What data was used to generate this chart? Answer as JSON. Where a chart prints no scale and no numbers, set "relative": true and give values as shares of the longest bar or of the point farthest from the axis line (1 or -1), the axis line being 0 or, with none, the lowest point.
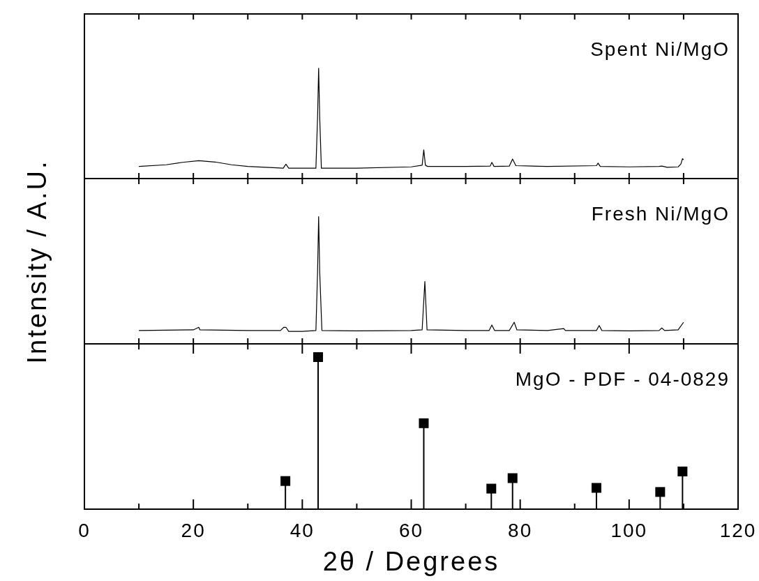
{
  "chart_data": [
    {
      "type": "line",
      "relative": true,
      "xlim": [
        0,
        120
      ],
      "xticks": [
        {
          "value": 0,
          "label": null
        },
        {
          "value": 10,
          "label": null
        },
        {
          "value": 20,
          "label": null
        },
        {
          "value": 30,
          "label": null
        },
        {
          "value": 40,
          "label": null
        },
        {
          "value": 50,
          "label": null
        },
        {
          "value": 60,
          "label": null
        },
        {
          "value": 70,
          "label": null
        },
        {
          "value": 80,
          "label": null
        },
        {
          "value": 90,
          "label": null
        },
        {
          "value": 100,
          "label": null
        },
        {
          "value": 110,
          "label": null
        },
        {
          "value": 120,
          "label": null
        }
      ],
      "tick_labels": false,
      "series": [
        {
          "name": "Spent Ni/MgO",
          "color": "#000000",
          "x": [
            10,
            15,
            18,
            21,
            24,
            27,
            30,
            34,
            36.5,
            37,
            37.5,
            40,
            42.5,
            42.8,
            43,
            43.2,
            43.5,
            50,
            60,
            62,
            62.3,
            62.6,
            63,
            70,
            74.5,
            74.8,
            75.2,
            78,
            78.6,
            79.2,
            85,
            94,
            94.3,
            94.7,
            100,
            105.5,
            106,
            107,
            109,
            109.5,
            109.8,
            110
          ],
          "values": [
            0.11,
            0.125,
            0.147,
            0.162,
            0.15,
            0.125,
            0.11,
            0.1,
            0.094,
            0.13,
            0.094,
            0.094,
            0.094,
            0.55,
            1,
            0.55,
            0.094,
            0.094,
            0.106,
            0.121,
            0.26,
            0.121,
            0.11,
            0.11,
            0.113,
            0.147,
            0.11,
            0.113,
            0.177,
            0.117,
            0.11,
            0.117,
            0.14,
            0.11,
            0.106,
            0.11,
            0.113,
            0.102,
            0.106,
            0.132,
            0.18,
            0.17
          ]
        }
      ]
    },
    {
      "type": "line",
      "relative": true,
      "xlim": [
        0,
        120
      ],
      "xticks": [
        {
          "value": 0,
          "label": null
        },
        {
          "value": 10,
          "label": null
        },
        {
          "value": 20,
          "label": null
        },
        {
          "value": 30,
          "label": null
        },
        {
          "value": 40,
          "label": null
        },
        {
          "value": 50,
          "label": null
        },
        {
          "value": 60,
          "label": null
        },
        {
          "value": 70,
          "label": null
        },
        {
          "value": 80,
          "label": null
        },
        {
          "value": 90,
          "label": null
        },
        {
          "value": 100,
          "label": null
        },
        {
          "value": 110,
          "label": null
        },
        {
          "value": 120,
          "label": null
        }
      ],
      "tick_labels": false,
      "ylabel": "Intensity / A.U.",
      "series": [
        {
          "name": "Fresh Ni/MgO",
          "color": "#000000",
          "x": [
            10,
            20,
            21,
            21.2,
            30,
            36,
            36.6,
            37,
            37.5,
            40,
            42.5,
            42.8,
            43,
            43.2,
            43.6,
            50,
            60,
            62,
            62.5,
            62.9,
            70,
            74.3,
            74.8,
            75.3,
            78,
            78.9,
            79.4,
            85,
            88,
            88.3,
            94,
            94.5,
            95,
            100,
            105.5,
            106,
            106.5,
            109,
            110
          ],
          "values": [
            0.105,
            0.11,
            0.13,
            0.11,
            0.105,
            0.105,
            0.13,
            0.13,
            0.098,
            0.098,
            0.105,
            0.56,
            1,
            0.56,
            0.105,
            0.102,
            0.105,
            0.11,
            0.49,
            0.11,
            0.105,
            0.105,
            0.148,
            0.105,
            0.105,
            0.17,
            0.11,
            0.105,
            0.12,
            0.105,
            0.105,
            0.144,
            0.105,
            0.102,
            0.105,
            0.125,
            0.105,
            0.11,
            0.17
          ]
        }
      ]
    },
    {
      "type": "lollipop",
      "relative": true,
      "marker": "square",
      "xlim": [
        0,
        120
      ],
      "xticks": [
        0,
        {
          "value": 10,
          "label": null
        },
        20,
        {
          "value": 30,
          "label": null
        },
        40,
        {
          "value": 50,
          "label": null
        },
        60,
        {
          "value": 70,
          "label": null
        },
        80,
        {
          "value": 90,
          "label": null
        },
        100,
        {
          "value": 110,
          "label": null
        },
        120
      ],
      "tick_labels": "x",
      "xlabel": "2θ / Degrees",
      "series": [
        {
          "name": "MgO - PDF - 04-0829",
          "color": "#000000",
          "x": [
            36.9,
            42.9,
            62.3,
            74.7,
            78.6,
            94.0,
            105.7,
            109.8
          ],
          "values": [
            0.185,
            1,
            0.565,
            0.135,
            0.204,
            0.14,
            0.113,
            0.248
          ]
        }
      ]
    }
  ]
}
